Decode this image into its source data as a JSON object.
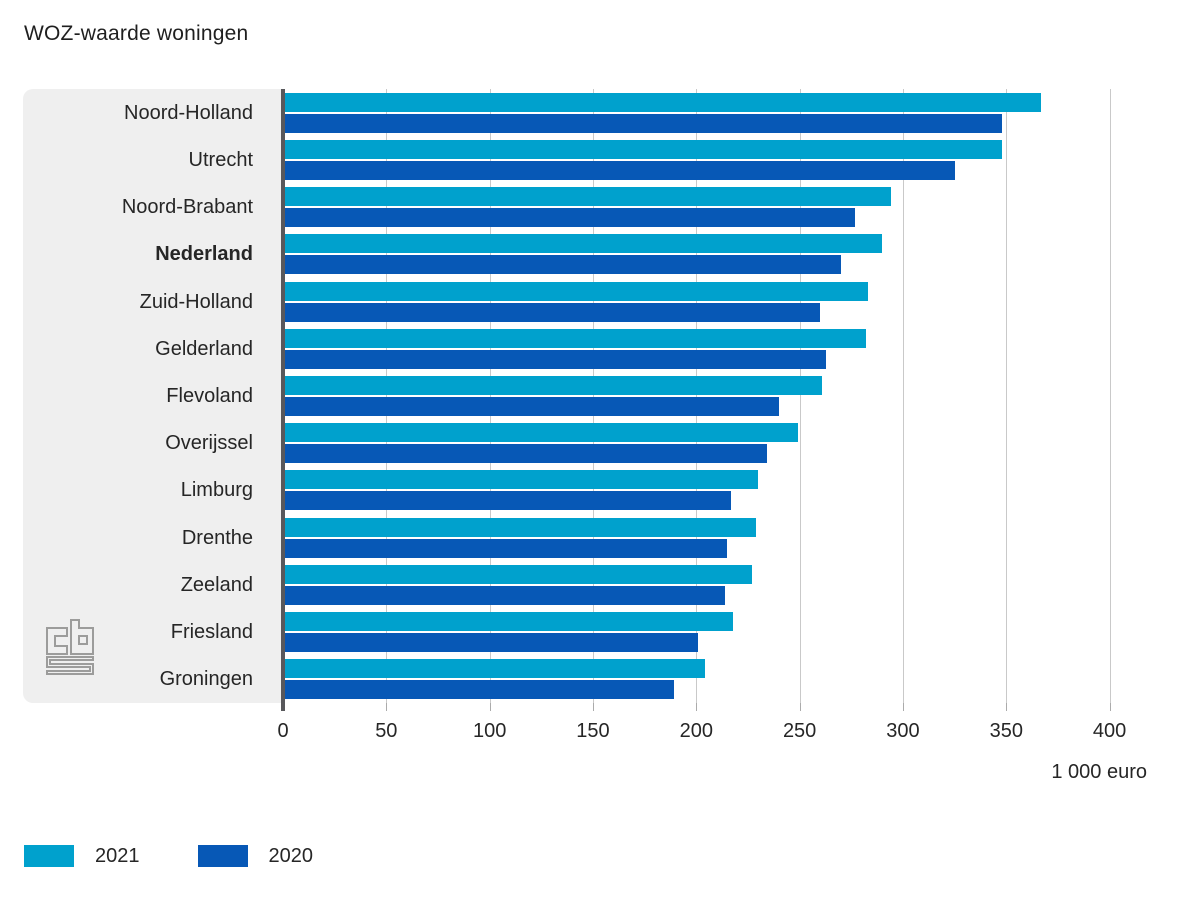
{
  "title": "WOZ-waarde woningen",
  "axis": {
    "unit_label": "1 000 euro"
  },
  "legend": [
    {
      "label": "2021",
      "color": "#00a1cd"
    },
    {
      "label": "2020",
      "color": "#0758b6"
    }
  ],
  "logo": "cbs",
  "chart_data": {
    "type": "bar",
    "orientation": "horizontal",
    "title": "WOZ-waarde woningen",
    "xlabel": "1 000 euro",
    "xlim": [
      0,
      420
    ],
    "x_ticks": [
      0,
      50,
      100,
      150,
      200,
      250,
      300,
      350,
      400
    ],
    "grid": true,
    "legend_position": "bottom-left",
    "emphasized_category": "Nederland",
    "categories": [
      "Noord-Holland",
      "Utrecht",
      "Noord-Brabant",
      "Nederland",
      "Zuid-Holland",
      "Gelderland",
      "Flevoland",
      "Overijssel",
      "Limburg",
      "Drenthe",
      "Zeeland",
      "Friesland",
      "Groningen"
    ],
    "series": [
      {
        "name": "2021",
        "color": "#00a1cd",
        "values": [
          367,
          348,
          294,
          290,
          283,
          282,
          261,
          249,
          230,
          229,
          227,
          218,
          204
        ]
      },
      {
        "name": "2020",
        "color": "#0758b6",
        "values": [
          348,
          325,
          277,
          270,
          260,
          263,
          240,
          234,
          217,
          215,
          214,
          201,
          189
        ]
      }
    ]
  }
}
